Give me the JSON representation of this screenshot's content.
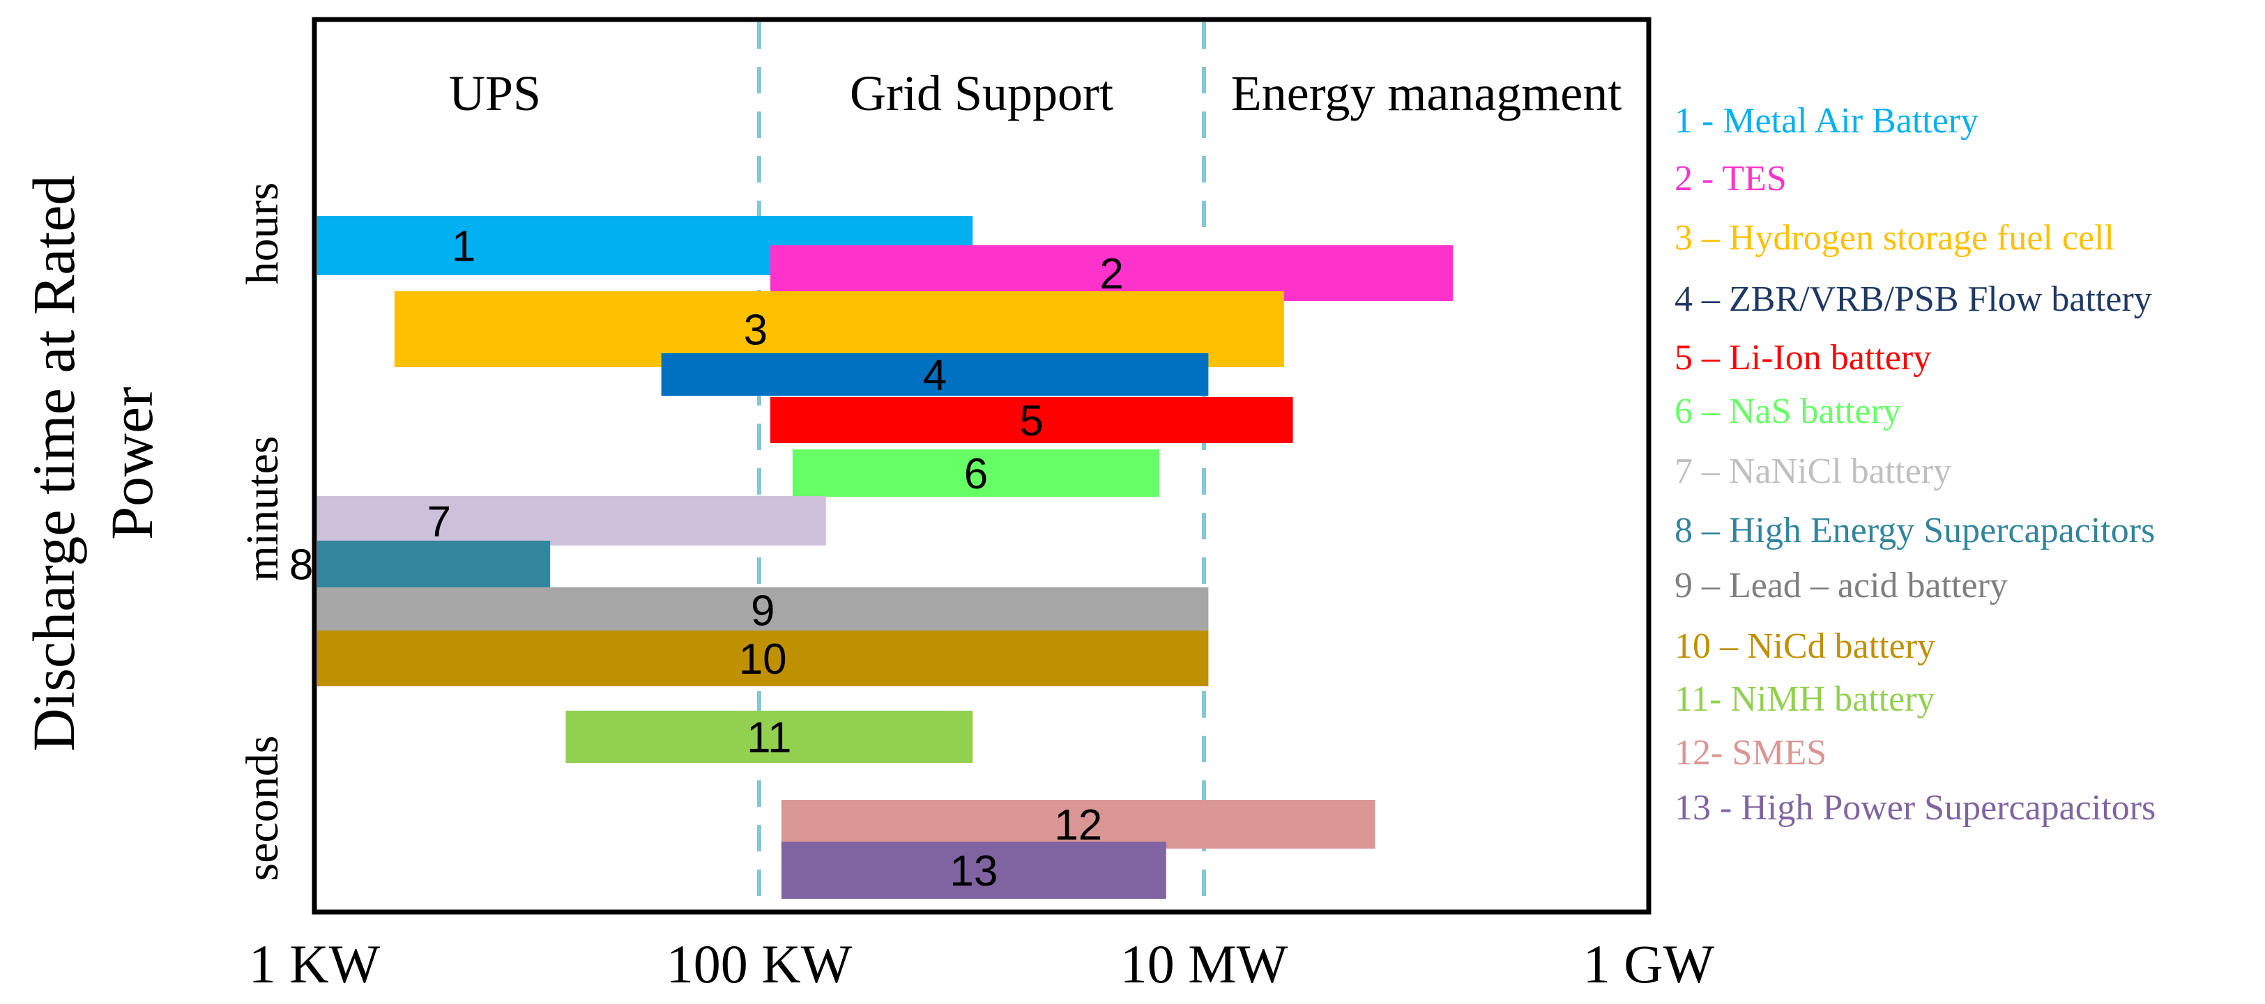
{
  "chart_data": {
    "type": "bar",
    "orientation": "horizontal-range",
    "ylabel_lines": [
      "Discharge time at Rated",
      "Power"
    ],
    "y_bands": [
      "seconds",
      "minutes",
      "hours"
    ],
    "x_ticks": [
      "1 KW",
      "100 KW",
      "10 MW",
      "1 GW"
    ],
    "x_scale": "log10 of kW",
    "xlim": [
      0,
      6
    ],
    "regions": [
      {
        "label": "UPS",
        "from": 0,
        "to": 2
      },
      {
        "label": "Grid Support",
        "from": 2,
        "to": 4
      },
      {
        "label": "Energy managment",
        "from": 4,
        "to": 6
      }
    ],
    "bars": [
      {
        "id": "1",
        "start": 0.0,
        "end": 2.96,
        "color": "#00b0f0"
      },
      {
        "id": "2",
        "start": 2.05,
        "end": 5.12,
        "color": "#ff33cc"
      },
      {
        "id": "3",
        "start": 0.36,
        "end": 4.36,
        "color": "#ffc000"
      },
      {
        "id": "4",
        "start": 1.56,
        "end": 4.02,
        "color": "#0070c0"
      },
      {
        "id": "5",
        "start": 2.05,
        "end": 4.4,
        "color": "#ff0000"
      },
      {
        "id": "6",
        "start": 2.15,
        "end": 3.8,
        "color": "#66ff66"
      },
      {
        "id": "7",
        "start": 0.0,
        "end": 2.3,
        "color": "#ccc0da"
      },
      {
        "id": "8",
        "start": 0.0,
        "end": 1.06,
        "color": "#31859c"
      },
      {
        "id": "9",
        "start": 0.0,
        "end": 4.02,
        "color": "#a6a6a6"
      },
      {
        "id": "10",
        "start": 0.0,
        "end": 4.02,
        "color": "#bf9000"
      },
      {
        "id": "11",
        "start": 1.13,
        "end": 2.96,
        "color": "#92d050"
      },
      {
        "id": "12",
        "start": 2.1,
        "end": 4.77,
        "color": "#da9694"
      },
      {
        "id": "13",
        "start": 2.1,
        "end": 3.83,
        "color": "#8064a2"
      }
    ],
    "legend": [
      {
        "text": "1 - Metal Air Battery",
        "color": "#00b0f0"
      },
      {
        "text": "2 - TES",
        "color": "#ff33cc"
      },
      {
        "text": "3 – Hydrogen storage fuel cell",
        "color": "#ffc000"
      },
      {
        "text": "4 – ZBR/VRB/PSB Flow battery",
        "color": "#1f3864"
      },
      {
        "text": "5 – Li-Ion battery",
        "color": "#ff0000"
      },
      {
        "text": "6 – NaS battery",
        "color": "#66ff66"
      },
      {
        "text": "7 – NaNiCl battery",
        "color": "#bfbfbf"
      },
      {
        "text": "8 – High Energy Supercapacitors",
        "color": "#31859c"
      },
      {
        "text": "9 – Lead – acid battery",
        "color": "#7f7f7f"
      },
      {
        "text": "10 – NiCd battery",
        "color": "#bf9000"
      },
      {
        "text": "11- NiMH battery",
        "color": "#92d050"
      },
      {
        "text": "12- SMES",
        "color": "#da9694"
      },
      {
        "text": "13 - High Power Supercapacitors",
        "color": "#8064a2"
      }
    ]
  }
}
